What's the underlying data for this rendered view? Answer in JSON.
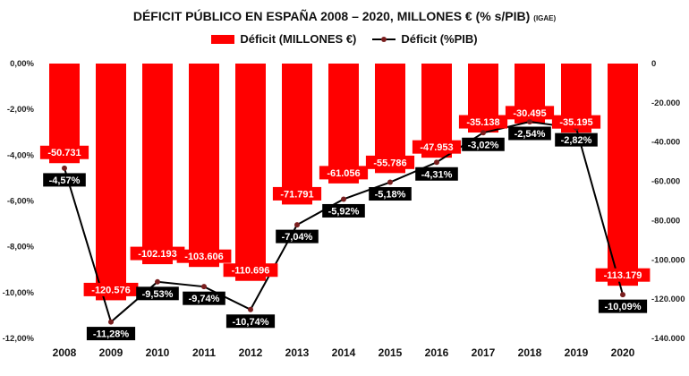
{
  "title": "DÉFICIT PÚBLICO EN ESPAÑA 2008 – 2020, MILLONES € (% s/PIB)",
  "source": "(IGAE)",
  "legend": {
    "bar_label": "Déficit (MILLONES €)",
    "line_label": "Déficit (%PIB)"
  },
  "colors": {
    "bar": "#ff0000",
    "line": "#000000",
    "marker": "#7a1e1e",
    "bar_label_bg": "#ff0000",
    "line_label_bg": "#000000"
  },
  "chart_data": {
    "type": "bar",
    "categories": [
      "2008",
      "2009",
      "2010",
      "2011",
      "2012",
      "2013",
      "2014",
      "2015",
      "2016",
      "2017",
      "2018",
      "2019",
      "2020"
    ],
    "series": [
      {
        "name": "Déficit (MILLONES €)",
        "type": "bar",
        "axis": "right",
        "values": [
          -50731,
          -120576,
          -102193,
          -103606,
          -110696,
          -71791,
          -61056,
          -55786,
          -47953,
          -35138,
          -30495,
          -35195,
          -113179
        ],
        "labels": [
          "-50.731",
          "-120.576",
          "-102.193",
          "-103.606",
          "-110.696",
          "-71.791",
          "-61.056",
          "-55.786",
          "-47.953",
          "-35.138",
          "-30.495",
          "-35.195",
          "-113.179"
        ]
      },
      {
        "name": "Déficit (%PIB)",
        "type": "line",
        "axis": "left",
        "values": [
          -4.57,
          -11.28,
          -9.53,
          -9.74,
          -10.74,
          -7.04,
          -5.92,
          -5.18,
          -4.31,
          -3.02,
          -2.54,
          -2.82,
          -10.09
        ],
        "labels": [
          "-4,57%",
          "-11,28%",
          "-9,53%",
          "-9,74%",
          "-10,74%",
          "-7,04%",
          "-5,92%",
          "-5,18%",
          "-4,31%",
          "-3,02%",
          "-2,54%",
          "-2,82%",
          "-10,09%"
        ]
      }
    ],
    "y_left": {
      "ylim": [
        -12,
        0
      ],
      "ticks": [
        0,
        -2,
        -4,
        -6,
        -8,
        -10,
        -12
      ],
      "tick_labels": [
        "0,00%",
        "-2,00%",
        "-4,00%",
        "-6,00%",
        "-8,00%",
        "-10,00%",
        "-12,00%"
      ]
    },
    "y_right": {
      "ylim": [
        -140000,
        0
      ],
      "ticks": [
        0,
        -20000,
        -40000,
        -60000,
        -80000,
        -100000,
        -120000,
        -140000
      ],
      "tick_labels": [
        "0",
        "-20.000",
        "-40.000",
        "-60.000",
        "-80.000",
        "-100.000",
        "-120.000",
        "-140.000"
      ]
    },
    "legend_position": "top",
    "grid": false
  }
}
